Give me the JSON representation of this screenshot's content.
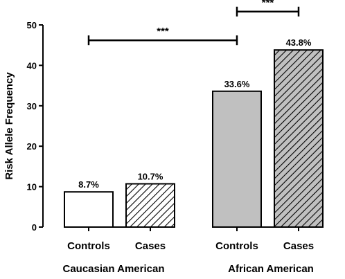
{
  "chart_data": {
    "type": "bar",
    "ylabel": "Risk Allele Frequency",
    "ylim": [
      0,
      50
    ],
    "yticks": [
      "0",
      "10",
      "20",
      "30",
      "40",
      "50"
    ],
    "grid": false,
    "legend": "none",
    "groups": [
      {
        "label": "Caucasian American",
        "categories": [
          "Controls",
          "Cases"
        ]
      },
      {
        "label": "African American",
        "categories": [
          "Controls",
          "Cases"
        ]
      }
    ],
    "bars": [
      {
        "group": "Caucasian American",
        "category": "Controls",
        "value": 8.7,
        "label": "8.7%",
        "fill": "white",
        "color": "#ffffff"
      },
      {
        "group": "Caucasian American",
        "category": "Cases",
        "value": 10.7,
        "label": "10.7%",
        "fill": "hatched",
        "color": "#ffffff"
      },
      {
        "group": "African American",
        "category": "Controls",
        "value": 33.6,
        "label": "33.6%",
        "fill": "solid",
        "color": "#c0c0c0"
      },
      {
        "group": "African American",
        "category": "Cases",
        "value": 43.8,
        "label": "43.8%",
        "fill": "hatched",
        "color": "#c0c0c0"
      }
    ],
    "significance": [
      {
        "from_bar": 1,
        "to_bar": 3,
        "y_value": 46.2,
        "label": "***"
      },
      {
        "from_bar": 3,
        "to_bar": 4,
        "y_value": 53.3,
        "label": "***"
      }
    ]
  }
}
